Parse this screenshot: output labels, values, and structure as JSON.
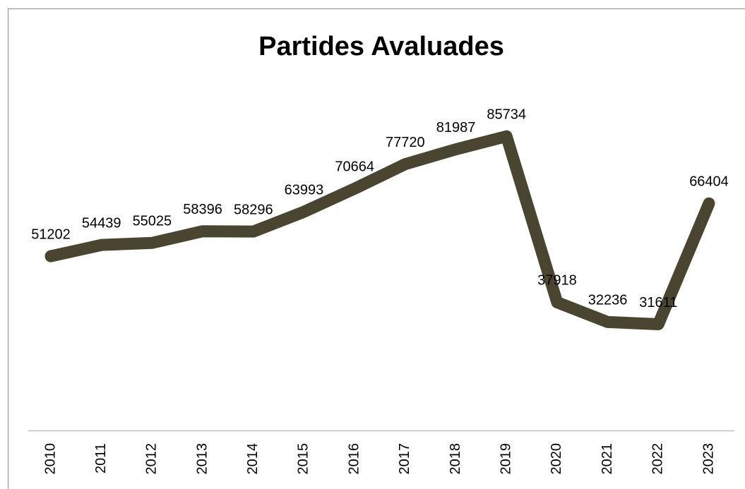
{
  "chart_data": {
    "type": "line",
    "title": "Partides Avaluades",
    "categories": [
      "2010",
      "2011",
      "2012",
      "2013",
      "2014",
      "2015",
      "2016",
      "2017",
      "2018",
      "2019",
      "2020",
      "2021",
      "2022",
      "2023"
    ],
    "values": [
      51202,
      54439,
      55025,
      58396,
      58296,
      63993,
      70664,
      77720,
      81987,
      85734,
      37918,
      32236,
      31611,
      66404
    ],
    "color": "#4a4530",
    "ylim": [
      0,
      100000
    ]
  }
}
